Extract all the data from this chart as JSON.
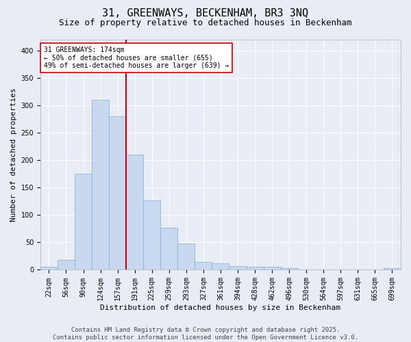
{
  "title": "31, GREENWAYS, BECKENHAM, BR3 3NQ",
  "subtitle": "Size of property relative to detached houses in Beckenham",
  "xlabel": "Distribution of detached houses by size in Beckenham",
  "ylabel": "Number of detached properties",
  "bar_color": "#c8d8ef",
  "bar_edge_color": "#7aaed6",
  "background_color": "#e8ecf5",
  "grid_color": "#ffffff",
  "categories": [
    "22sqm",
    "56sqm",
    "90sqm",
    "124sqm",
    "157sqm",
    "191sqm",
    "225sqm",
    "259sqm",
    "293sqm",
    "327sqm",
    "361sqm",
    "394sqm",
    "428sqm",
    "462sqm",
    "496sqm",
    "530sqm",
    "564sqm",
    "597sqm",
    "631sqm",
    "665sqm",
    "699sqm"
  ],
  "values": [
    5,
    18,
    175,
    310,
    280,
    210,
    127,
    77,
    48,
    14,
    12,
    7,
    6,
    5,
    3,
    1,
    1,
    0,
    1,
    0,
    3
  ],
  "ylim": [
    0,
    420
  ],
  "yticks": [
    0,
    50,
    100,
    150,
    200,
    250,
    300,
    350,
    400
  ],
  "vline_color": "#cc0000",
  "vline_x": 4.5,
  "annotation_text": "31 GREENWAYS: 174sqm\n← 50% of detached houses are smaller (655)\n49% of semi-detached houses are larger (639) →",
  "annotation_box_color": "#ffffff",
  "annotation_box_edge": "#cc0000",
  "footer_line1": "Contains HM Land Registry data © Crown copyright and database right 2025.",
  "footer_line2": "Contains public sector information licensed under the Open Government Licence v3.0.",
  "title_fontsize": 11,
  "subtitle_fontsize": 9,
  "axis_label_fontsize": 8,
  "tick_fontsize": 7,
  "annotation_fontsize": 7,
  "footer_fontsize": 6.5
}
